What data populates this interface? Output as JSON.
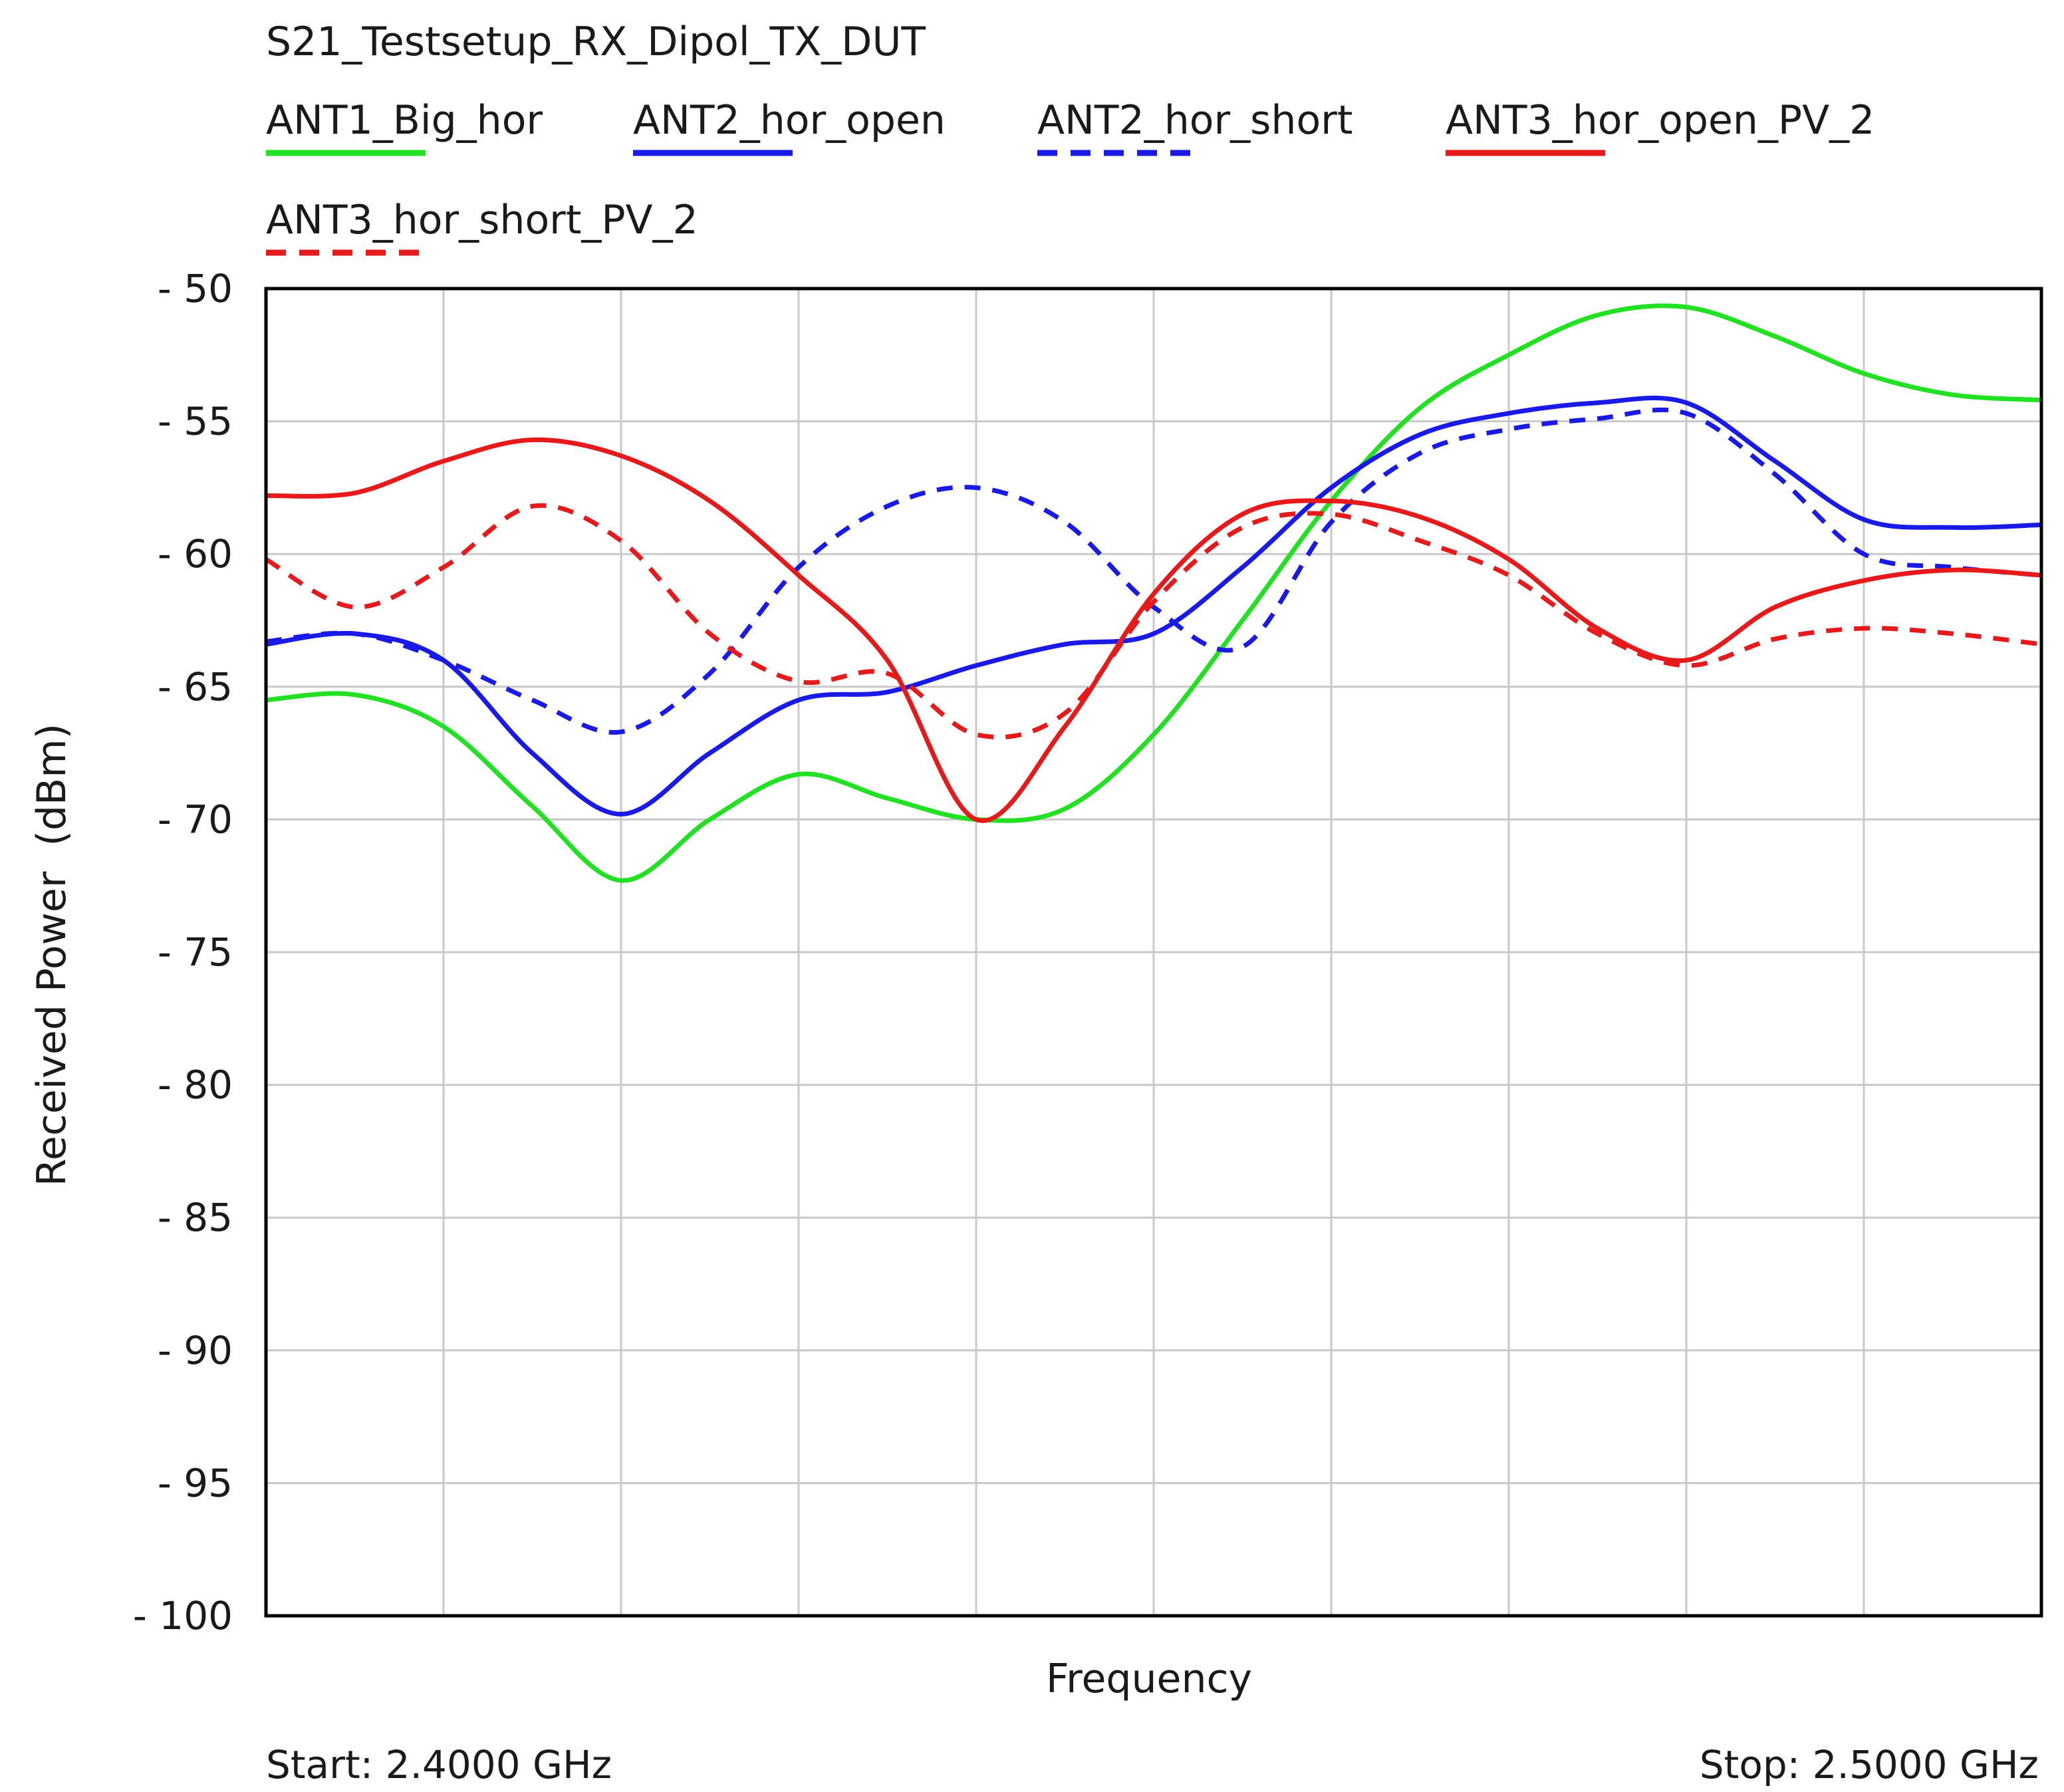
{
  "chart_data": {
    "type": "line",
    "title": "S21_Testsetup_RX_Dipol_TX_DUT",
    "xlabel": "Frequency",
    "ylabel": "Received Power  (dBm)",
    "start_label": "Start: 2.4000 GHz",
    "stop_label": "Stop: 2.5000 GHz",
    "xlim": [
      2.4,
      2.5
    ],
    "ylim": [
      -100,
      -50
    ],
    "yticks": [
      "- 50",
      "- 55",
      "- 60",
      "- 65",
      "- 70",
      "- 75",
      "- 80",
      "- 85",
      "- 90",
      "- 95",
      "- 100"
    ],
    "grid": true,
    "legend_position": "top",
    "series": [
      {
        "name": "ANT1_Big_hor",
        "color": "#22e022",
        "dash": "solid",
        "x": [
          2.4,
          2.405,
          2.41,
          2.415,
          2.42,
          2.425,
          2.43,
          2.435,
          2.44,
          2.445,
          2.45,
          2.455,
          2.46,
          2.465,
          2.47,
          2.475,
          2.48,
          2.485,
          2.49,
          2.495,
          2.5
        ],
        "y": [
          -65.5,
          -65.3,
          -66.5,
          -69.5,
          -72.3,
          -70,
          -68.3,
          -69.2,
          -70.0,
          -69.6,
          -66.8,
          -62.5,
          -58,
          -54.5,
          -52.5,
          -51,
          -50.7,
          -51.8,
          -53.2,
          -54,
          -54.2
        ]
      },
      {
        "name": "ANT2_hor_open",
        "color": "#1a1ae6",
        "dash": "solid",
        "x": [
          2.4,
          2.405,
          2.41,
          2.415,
          2.42,
          2.425,
          2.43,
          2.435,
          2.44,
          2.445,
          2.45,
          2.455,
          2.46,
          2.465,
          2.47,
          2.475,
          2.48,
          2.485,
          2.49,
          2.495,
          2.5
        ],
        "y": [
          -63.4,
          -63.0,
          -64.0,
          -67.5,
          -69.8,
          -67.5,
          -65.5,
          -65.2,
          -64.2,
          -63.4,
          -63.0,
          -60.5,
          -57.5,
          -55.5,
          -54.7,
          -54.3,
          -54.3,
          -56.5,
          -58.7,
          -59.0,
          -58.9
        ]
      },
      {
        "name": "ANT2_hor_short",
        "color": "#1a1ae6",
        "dash": "dashed",
        "x": [
          2.4,
          2.405,
          2.41,
          2.415,
          2.42,
          2.425,
          2.43,
          2.435,
          2.44,
          2.445,
          2.45,
          2.455,
          2.46,
          2.465,
          2.47,
          2.475,
          2.48,
          2.485,
          2.49,
          2.495,
          2.5
        ],
        "y": [
          -63.3,
          -63.0,
          -64.0,
          -65.5,
          -66.7,
          -64.5,
          -60.5,
          -58.2,
          -57.5,
          -58.8,
          -62.0,
          -63.5,
          -58.8,
          -56.2,
          -55.3,
          -54.9,
          -54.7,
          -57.0,
          -60.0,
          -60.5,
          -60.8
        ]
      },
      {
        "name": "ANT3_hor_open_PV_2",
        "color": "#e61a1a",
        "dash": "solid",
        "x": [
          2.4,
          2.405,
          2.41,
          2.415,
          2.42,
          2.425,
          2.43,
          2.435,
          2.44,
          2.445,
          2.45,
          2.455,
          2.46,
          2.465,
          2.47,
          2.475,
          2.48,
          2.485,
          2.49,
          2.495,
          2.5
        ],
        "y": [
          -57.8,
          -57.7,
          -56.5,
          -55.7,
          -56.3,
          -58.0,
          -60.8,
          -64.0,
          -70.0,
          -66.5,
          -61.5,
          -58.5,
          -58.0,
          -58.6,
          -60.2,
          -62.8,
          -64.0,
          -62.0,
          -61.0,
          -60.6,
          -60.8
        ]
      },
      {
        "name": "ANT3_hor_short_PV_2",
        "color": "#e61a1a",
        "dash": "dashed",
        "x": [
          2.4,
          2.405,
          2.41,
          2.415,
          2.42,
          2.425,
          2.43,
          2.435,
          2.44,
          2.445,
          2.45,
          2.455,
          2.46,
          2.465,
          2.47,
          2.475,
          2.48,
          2.485,
          2.49,
          2.495,
          2.5
        ],
        "y": [
          -60.2,
          -62.0,
          -60.5,
          -58.2,
          -59.5,
          -63.0,
          -64.8,
          -64.5,
          -66.8,
          -66.0,
          -61.8,
          -59.0,
          -58.5,
          -59.5,
          -60.8,
          -63.0,
          -64.2,
          -63.2,
          -62.8,
          -63.0,
          -63.4
        ]
      }
    ]
  }
}
